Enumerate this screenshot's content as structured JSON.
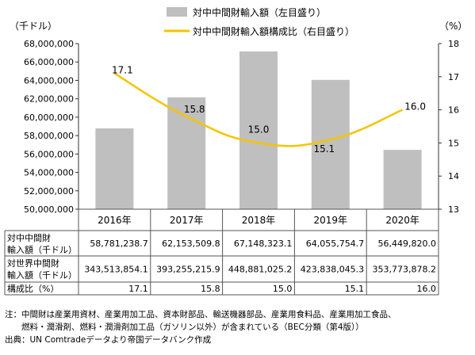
{
  "chart_data": {
    "type": "bar+line",
    "categories": [
      "2016年",
      "2017年",
      "2018年",
      "2019年",
      "2020年"
    ],
    "series": [
      {
        "name": "対中中間財輸入額（左目盛り）",
        "kind": "bar",
        "axis": "left",
        "color": "#bfbfbf",
        "values": [
          58781238.7,
          62153509.8,
          67148323.1,
          64055754.7,
          56449820.0
        ]
      },
      {
        "name": "対中中間財輸入額構成比（右目盛り）",
        "kind": "line",
        "axis": "right",
        "color": "#f5c400",
        "values": [
          17.1,
          15.8,
          15.0,
          15.1,
          16.0
        ]
      }
    ],
    "y_left": {
      "unit": "（千ドル）",
      "min": 50000000,
      "max": 68000000,
      "ticks": [
        "50,000,000",
        "52,000,000",
        "54,000,000",
        "56,000,000",
        "58,000,000",
        "60,000,000",
        "62,000,000",
        "64,000,000",
        "66,000,000",
        "68,000,000"
      ]
    },
    "y_right": {
      "unit": "（%）",
      "min": 13,
      "max": 18,
      "ticks": [
        "13",
        "14",
        "15",
        "16",
        "17",
        "18"
      ]
    },
    "line_labels": [
      "17.1",
      "15.8",
      "15.0",
      "15.1",
      "16.0"
    ],
    "legend_position": "top",
    "grid": false,
    "table": {
      "rows": [
        {
          "label_lines": [
            "対中中間財",
            "輸入額（千ドル）"
          ],
          "cells": [
            "58,781,238.7",
            "62,153,509.8",
            "67,148,323.1",
            "64,055,754.7",
            "56,449,820.0"
          ]
        },
        {
          "label_lines": [
            "対世界中間財",
            "輸入額（千ドル）"
          ],
          "cells": [
            "343,513,854.1",
            "393,255,215.9",
            "448,881,025.2",
            "423,838,045.3",
            "353,773,878.2"
          ]
        },
        {
          "label_lines": [
            "構成比（%）"
          ],
          "cells": [
            "17.1",
            "15.8",
            "15.0",
            "15.1",
            "16.0"
          ]
        }
      ]
    }
  },
  "notes": {
    "line1": "注：中間財は産業用資材、産業用加工品、資本財部品、輸送機器部品、産業用食料品、産業用加工食品、",
    "line2": "　　燃料・潤滑剤、燃料・潤滑剤加工品（ガソリン以外）が含まれている（BEC分類（第4版））",
    "source": "出典：UN Comtradeデータより帝国データバンク作成"
  }
}
